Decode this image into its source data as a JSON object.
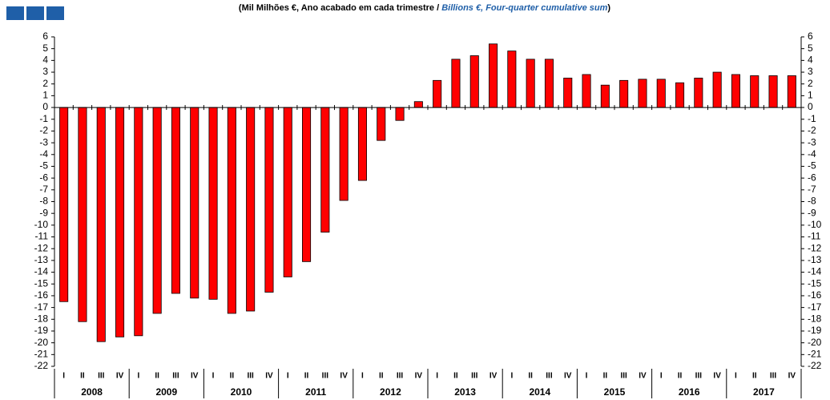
{
  "chart_data": {
    "type": "bar",
    "title": {
      "prefix": "(Mil Milhões €, Ano acabado em cada trimestre / ",
      "english": "Billions  €, Four-quarter cumulative sum",
      "suffix": ")"
    },
    "categories": [
      "I",
      "II",
      "III",
      "IV",
      "I",
      "II",
      "III",
      "IV",
      "I",
      "II",
      "III",
      "IV",
      "I",
      "II",
      "III",
      "IV",
      "I",
      "II",
      "III",
      "IV",
      "I",
      "II",
      "III",
      "IV",
      "I",
      "II",
      "III",
      "IV",
      "I",
      "II",
      "III",
      "IV",
      "I",
      "II",
      "III",
      "IV",
      "I",
      "II",
      "III",
      "IV"
    ],
    "years": [
      "2008",
      "2009",
      "2010",
      "2011",
      "2012",
      "2013",
      "2014",
      "2015",
      "2016",
      "2017"
    ],
    "values": [
      -16.5,
      -18.2,
      -19.9,
      -19.5,
      -19.4,
      -17.5,
      -15.8,
      -16.2,
      -16.3,
      -17.5,
      -17.3,
      -15.7,
      -14.4,
      -13.1,
      -10.6,
      -7.9,
      -6.2,
      -2.8,
      -1.1,
      0.5,
      2.3,
      4.1,
      4.4,
      5.4,
      4.8,
      4.1,
      4.1,
      2.5,
      2.8,
      1.9,
      2.3,
      2.4,
      2.4,
      2.1,
      2.5,
      3.0,
      2.8,
      2.7,
      2.7,
      2.7
    ],
    "color": "#ff0000",
    "ylim": [
      -22,
      6
    ],
    "yticks": [
      6,
      5,
      4,
      3,
      2,
      1,
      0,
      -1,
      -2,
      -3,
      -4,
      -5,
      -6,
      -7,
      -8,
      -9,
      -10,
      -11,
      -12,
      -13,
      -14,
      -15,
      -16,
      -17,
      -18,
      -19,
      -20,
      -21,
      -22
    ],
    "y2lim": [
      -22,
      6
    ],
    "y2ticks": [
      6,
      5,
      4,
      3,
      2,
      1,
      0,
      -1,
      -2,
      -3,
      -4,
      -5,
      -6,
      -7,
      -8,
      -9,
      -10,
      -11,
      -12,
      -13,
      -14,
      -15,
      -16,
      -17,
      -18,
      -19,
      -20,
      -21,
      -22
    ]
  }
}
